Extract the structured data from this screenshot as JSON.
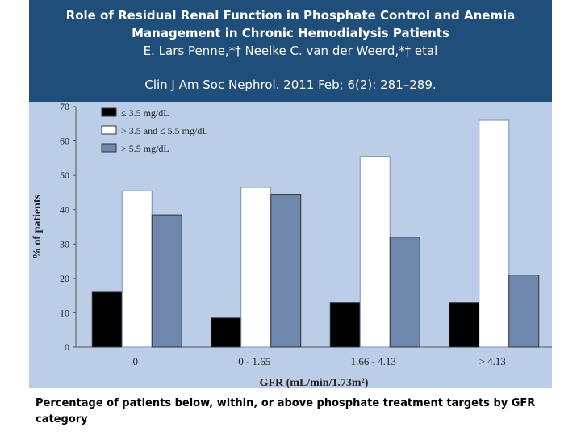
{
  "header": {
    "title_line1": "Role of Residual Renal Function in Phosphate Control and Anemia",
    "title_line2": "Management in Chronic Hemodialysis Patients",
    "authors": "E. Lars Penne,*† Neelke C. van der Weerd,*† etal",
    "citation": "Clin J Am Soc Nephrol. 2011 Feb; 6(2): 281–289."
  },
  "caption": "Percentage of patients below, within, or above phosphate treatment targets by GFR category",
  "chart_data": {
    "type": "bar",
    "xlabel": "GFR (mL/min/1.73m²)",
    "ylabel": "% of patients",
    "ylim": [
      0,
      70
    ],
    "yticks": [
      0,
      10,
      20,
      30,
      40,
      50,
      60,
      70
    ],
    "categories": [
      "0",
      "0 - 1.65",
      "1.66 - 4.13",
      "> 4.13"
    ],
    "legend_position": "top-left",
    "series": [
      {
        "name": "≤ 3.5 mg/dL",
        "color": "#000000",
        "values": [
          16,
          8.5,
          13,
          13
        ]
      },
      {
        "name": "> 3.5 and ≤ 5.5 mg/dL",
        "color": "#ffffff",
        "values": [
          45.5,
          46.5,
          55.5,
          66
        ]
      },
      {
        "name": "> 5.5 mg/dL",
        "color": "#6f86ad",
        "values": [
          38.5,
          44.5,
          32,
          21
        ]
      }
    ]
  }
}
